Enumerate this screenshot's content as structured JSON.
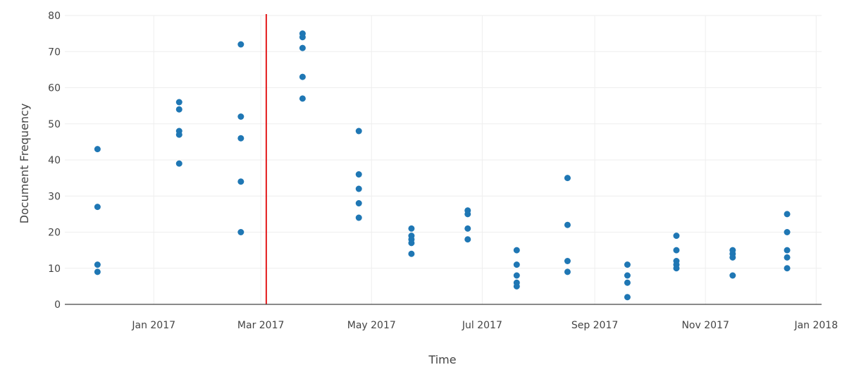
{
  "chart_data": {
    "type": "scatter",
    "title": "",
    "xlabel": "Time",
    "ylabel": "Document Frequency",
    "xlim": [
      "2016-11-13",
      "2018-01-04"
    ],
    "ylim": [
      0,
      80
    ],
    "grid": true,
    "x_ticks": [
      {
        "date": "2017-01-01",
        "label": "Jan 2017"
      },
      {
        "date": "2017-03-01",
        "label": "Mar 2017"
      },
      {
        "date": "2017-05-01",
        "label": "May 2017"
      },
      {
        "date": "2017-07-01",
        "label": "Jul 2017"
      },
      {
        "date": "2017-09-01",
        "label": "Sep 2017"
      },
      {
        "date": "2017-11-01",
        "label": "Nov 2017"
      },
      {
        "date": "2018-01-01",
        "label": "Jan 2018"
      }
    ],
    "y_ticks": [
      0,
      10,
      20,
      30,
      40,
      50,
      60,
      70,
      80
    ],
    "marker_color": "#1f77b4",
    "reference_line": {
      "date": "2017-03-04",
      "color": "#e31a1c"
    },
    "series": [
      {
        "points": [
          {
            "x": "2016-12-01",
            "y": 43
          },
          {
            "x": "2016-12-01",
            "y": 27
          },
          {
            "x": "2016-12-01",
            "y": 11
          },
          {
            "x": "2016-12-01",
            "y": 9
          },
          {
            "x": "2017-01-15",
            "y": 56
          },
          {
            "x": "2017-01-15",
            "y": 54
          },
          {
            "x": "2017-01-15",
            "y": 48
          },
          {
            "x": "2017-01-15",
            "y": 47
          },
          {
            "x": "2017-01-15",
            "y": 39
          },
          {
            "x": "2017-02-18",
            "y": 72
          },
          {
            "x": "2017-02-18",
            "y": 52
          },
          {
            "x": "2017-02-18",
            "y": 46
          },
          {
            "x": "2017-02-18",
            "y": 34
          },
          {
            "x": "2017-02-18",
            "y": 20
          },
          {
            "x": "2017-03-24",
            "y": 75
          },
          {
            "x": "2017-03-24",
            "y": 74
          },
          {
            "x": "2017-03-24",
            "y": 71
          },
          {
            "x": "2017-03-24",
            "y": 63
          },
          {
            "x": "2017-03-24",
            "y": 57
          },
          {
            "x": "2017-04-24",
            "y": 48
          },
          {
            "x": "2017-04-24",
            "y": 36
          },
          {
            "x": "2017-04-24",
            "y": 32
          },
          {
            "x": "2017-04-24",
            "y": 28
          },
          {
            "x": "2017-04-24",
            "y": 24
          },
          {
            "x": "2017-05-23",
            "y": 21
          },
          {
            "x": "2017-05-23",
            "y": 19
          },
          {
            "x": "2017-05-23",
            "y": 18
          },
          {
            "x": "2017-05-23",
            "y": 17
          },
          {
            "x": "2017-05-23",
            "y": 14
          },
          {
            "x": "2017-06-23",
            "y": 26
          },
          {
            "x": "2017-06-23",
            "y": 25
          },
          {
            "x": "2017-06-23",
            "y": 21
          },
          {
            "x": "2017-06-23",
            "y": 18
          },
          {
            "x": "2017-07-20",
            "y": 15
          },
          {
            "x": "2017-07-20",
            "y": 11
          },
          {
            "x": "2017-07-20",
            "y": 8
          },
          {
            "x": "2017-07-20",
            "y": 6
          },
          {
            "x": "2017-07-20",
            "y": 5
          },
          {
            "x": "2017-08-17",
            "y": 35
          },
          {
            "x": "2017-08-17",
            "y": 22
          },
          {
            "x": "2017-08-17",
            "y": 12
          },
          {
            "x": "2017-08-17",
            "y": 9
          },
          {
            "x": "2017-09-19",
            "y": 11
          },
          {
            "x": "2017-09-19",
            "y": 8
          },
          {
            "x": "2017-09-19",
            "y": 6
          },
          {
            "x": "2017-09-19",
            "y": 2
          },
          {
            "x": "2017-10-16",
            "y": 19
          },
          {
            "x": "2017-10-16",
            "y": 15
          },
          {
            "x": "2017-10-16",
            "y": 12
          },
          {
            "x": "2017-10-16",
            "y": 11
          },
          {
            "x": "2017-10-16",
            "y": 10
          },
          {
            "x": "2017-11-16",
            "y": 15
          },
          {
            "x": "2017-11-16",
            "y": 14
          },
          {
            "x": "2017-11-16",
            "y": 13
          },
          {
            "x": "2017-11-16",
            "y": 8
          },
          {
            "x": "2017-12-16",
            "y": 25
          },
          {
            "x": "2017-12-16",
            "y": 20
          },
          {
            "x": "2017-12-16",
            "y": 15
          },
          {
            "x": "2017-12-16",
            "y": 13
          },
          {
            "x": "2017-12-16",
            "y": 10
          }
        ]
      }
    ]
  }
}
